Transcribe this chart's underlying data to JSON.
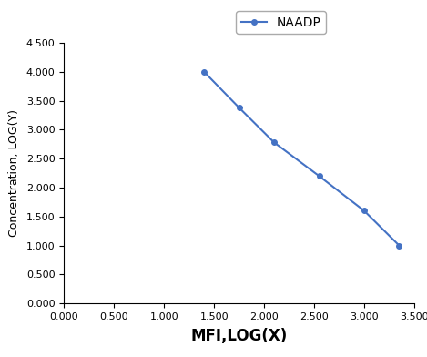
{
  "x": [
    1.4,
    1.75,
    2.1,
    2.55,
    3.0,
    3.35
  ],
  "y": [
    4.0,
    3.38,
    2.78,
    2.2,
    1.6,
    1.0
  ],
  "line_color": "#4472C4",
  "marker": "o",
  "marker_size": 4,
  "legend_label": "NAADP",
  "xlabel": "MFI,LOG(X)",
  "ylabel": "Concentration, LOG(Y)",
  "xlim": [
    0.0,
    3.5
  ],
  "ylim": [
    0.0,
    4.5
  ],
  "xticks": [
    0.0,
    0.5,
    1.0,
    1.5,
    2.0,
    2.5,
    3.0,
    3.5
  ],
  "yticks": [
    0.0,
    0.5,
    1.0,
    1.5,
    2.0,
    2.5,
    3.0,
    3.5,
    4.0,
    4.5
  ],
  "xlabel_fontsize": 12,
  "ylabel_fontsize": 9,
  "tick_fontsize": 8,
  "legend_fontsize": 10,
  "line_width": 1.5
}
